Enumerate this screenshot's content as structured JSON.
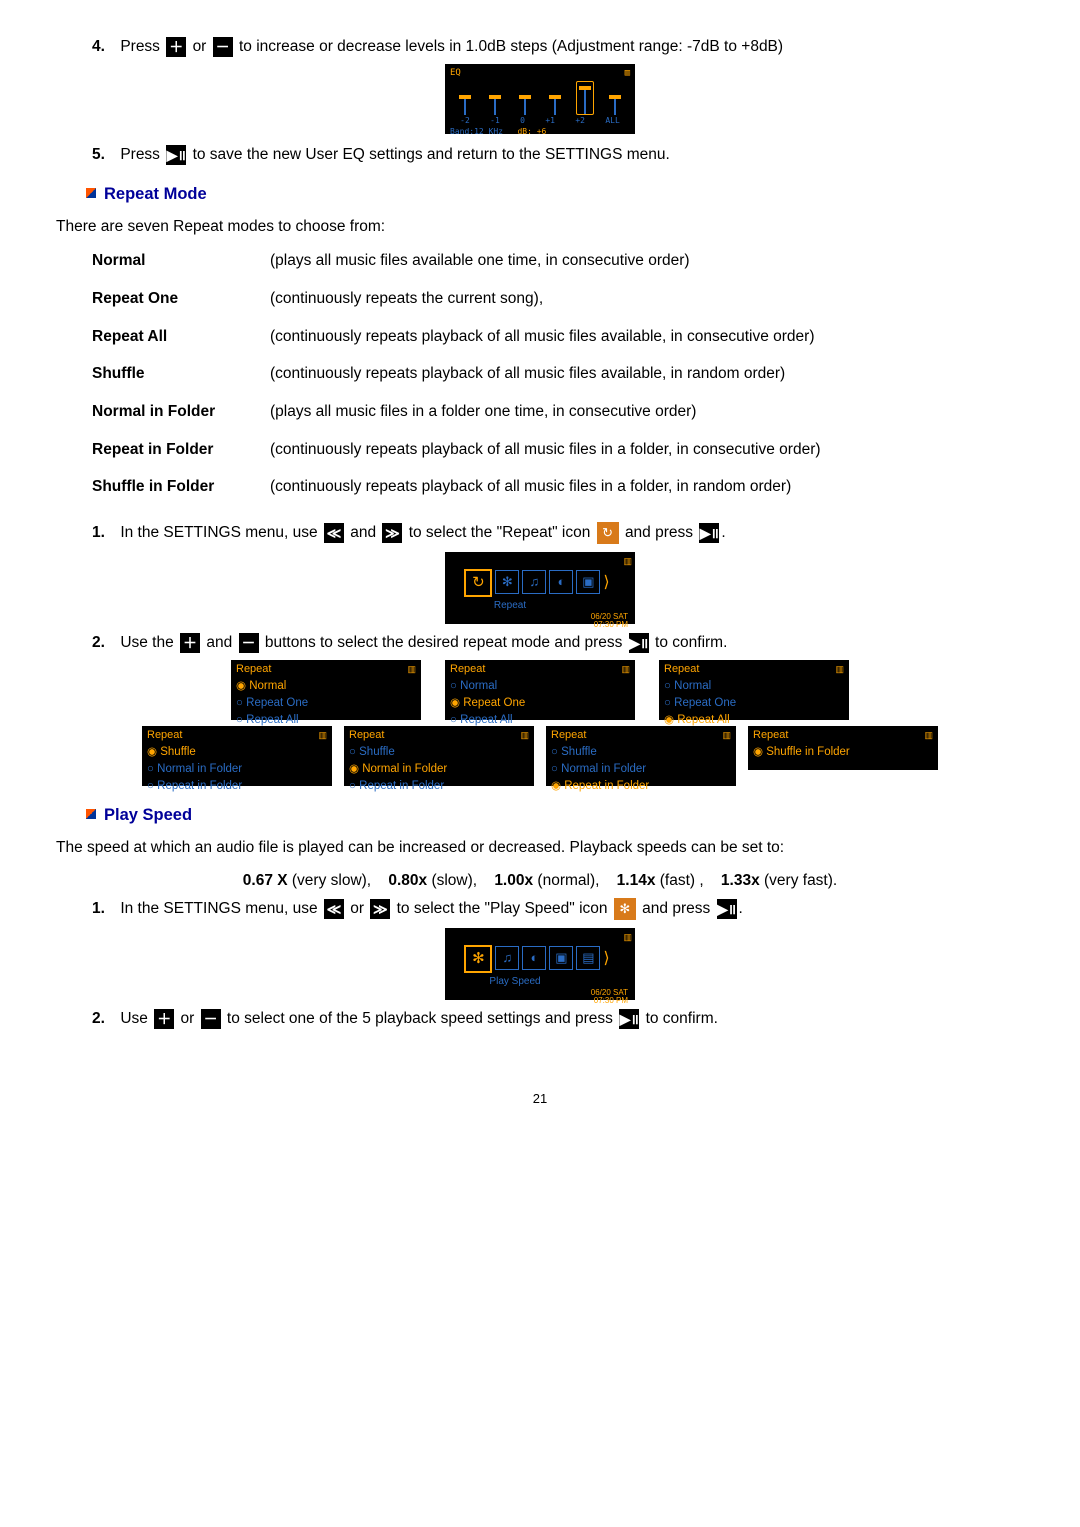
{
  "step4": {
    "num": "4.",
    "pre": "Press ",
    "plus_label": "＋",
    "or": " or ",
    "minus_label": "－",
    "post": " to increase or decrease levels in 1.0dB steps (Adjustment range: -7dB to +8dB)"
  },
  "eq_screen": {
    "title": "EQ",
    "ticks": [
      "-2",
      "-1",
      "0",
      "+1",
      "+2",
      "ALL"
    ],
    "band": "Band:12 KHz",
    "db": "dB: +6"
  },
  "step5": {
    "num": "5.",
    "pre": "Press ",
    "play_label": "▶॥",
    "post": " to save the new User EQ settings and return to the SETTINGS menu."
  },
  "section_repeat": "Repeat Mode",
  "repeat_intro": "There are seven Repeat modes to choose from:",
  "modes": [
    {
      "label": "Normal",
      "desc": "(plays all music files available one time, in consecutive order)"
    },
    {
      "label": "Repeat One",
      "desc": "(continuously repeats the current song),"
    },
    {
      "label": "Repeat All",
      "desc": "(continuously repeats playback of all music files available, in consecutive order)"
    },
    {
      "label": "Shuffle",
      "desc": "(continuously repeats playback of all music files available, in random order)"
    },
    {
      "label": "Normal in Folder",
      "desc": "(plays all music files in a folder one time, in consecutive order)"
    },
    {
      "label": "Repeat in Folder",
      "desc": "(continuously repeats playback of all music files in a folder, in consecutive order)"
    },
    {
      "label": "Shuffle in Folder",
      "desc": "(continuously repeats playback of all music files in a folder, in random order)"
    }
  ],
  "repeat_step1": {
    "num": "1.",
    "pre": "In the SETTINGS menu, use ",
    "left": "≪",
    "and": " and ",
    "right": "≫",
    "mid": " to select the \"Repeat\" icon ",
    "repeat_ico": "↻",
    "end_pre": " and press ",
    "play": "▶॥",
    "period": "."
  },
  "settings_screen1": {
    "caption": "Repeat",
    "time1": "06/20 SAT",
    "time2": "07:30 PM",
    "icons": [
      "↻",
      "✻",
      "♫",
      "◐",
      "▣",
      "⟩"
    ]
  },
  "repeat_step2": {
    "num": "2.",
    "pre": "Use the ",
    "plus": "＋",
    "and": " and ",
    "minus": "－",
    "mid": " buttons to select the desired repeat mode and press ",
    "play": "▶॥",
    "post": " to confirm."
  },
  "repeat_screens_row1": [
    {
      "title": "Repeat",
      "opts": [
        "◉ Normal",
        "○ Repeat One",
        "○ Repeat All"
      ],
      "sel": 0
    },
    {
      "title": "Repeat",
      "opts": [
        "○ Normal",
        "◉ Repeat One",
        "○ Repeat All"
      ],
      "sel": 1
    },
    {
      "title": "Repeat",
      "opts": [
        "○ Normal",
        "○ Repeat One",
        "◉ Repeat All"
      ],
      "sel": 2
    }
  ],
  "repeat_screens_row2": [
    {
      "title": "Repeat",
      "opts": [
        "◉ Shuffle",
        "○ Normal in Folder",
        "○ Repeat in Folder"
      ],
      "sel": 0
    },
    {
      "title": "Repeat",
      "opts": [
        "○ Shuffle",
        "◉ Normal in Folder",
        "○ Repeat in Folder"
      ],
      "sel": 1
    },
    {
      "title": "Repeat",
      "opts": [
        "○ Shuffle",
        "○ Normal in Folder",
        "◉ Repeat in Folder"
      ],
      "sel": 2
    },
    {
      "title": "Repeat",
      "opts": [
        "◉ Shuffle in Folder"
      ],
      "sel": 0,
      "short": true
    }
  ],
  "section_playspeed": "Play Speed",
  "playspeed_intro": "The speed at which an audio file is played can be increased or decreased. Playback speeds can be set to:",
  "speeds": [
    {
      "b": "0.67 X",
      "t": " (very slow),"
    },
    {
      "b": "0.80x",
      "t": " (slow),"
    },
    {
      "b": "1.00x",
      "t": " (normal),"
    },
    {
      "b": "1.14x",
      "t": " (fast) ,"
    },
    {
      "b": "1.33x",
      "t": " (very fast)."
    }
  ],
  "ps_step1": {
    "num": "1.",
    "pre": "In the SETTINGS menu, use ",
    "left": "≪",
    "or": " or ",
    "right": "≫",
    "mid": " to select the \"Play Speed\" icon ",
    "ps_ico": "✻",
    "end_pre": " and press ",
    "play": "▶॥",
    "period": "."
  },
  "settings_screen2": {
    "caption": "Play Speed",
    "time1": "06/20 SAT",
    "time2": "07:30 PM",
    "icons": [
      "✻",
      "♫",
      "◐",
      "▣",
      "▤",
      "⟩"
    ]
  },
  "ps_step2": {
    "num": "2.",
    "pre": "Use ",
    "plus": "＋",
    "or": " or ",
    "minus": "－",
    "mid": " to select one of the 5 playback speed settings and press ",
    "play": "▶॥",
    "post": " to confirm."
  },
  "page": "21"
}
